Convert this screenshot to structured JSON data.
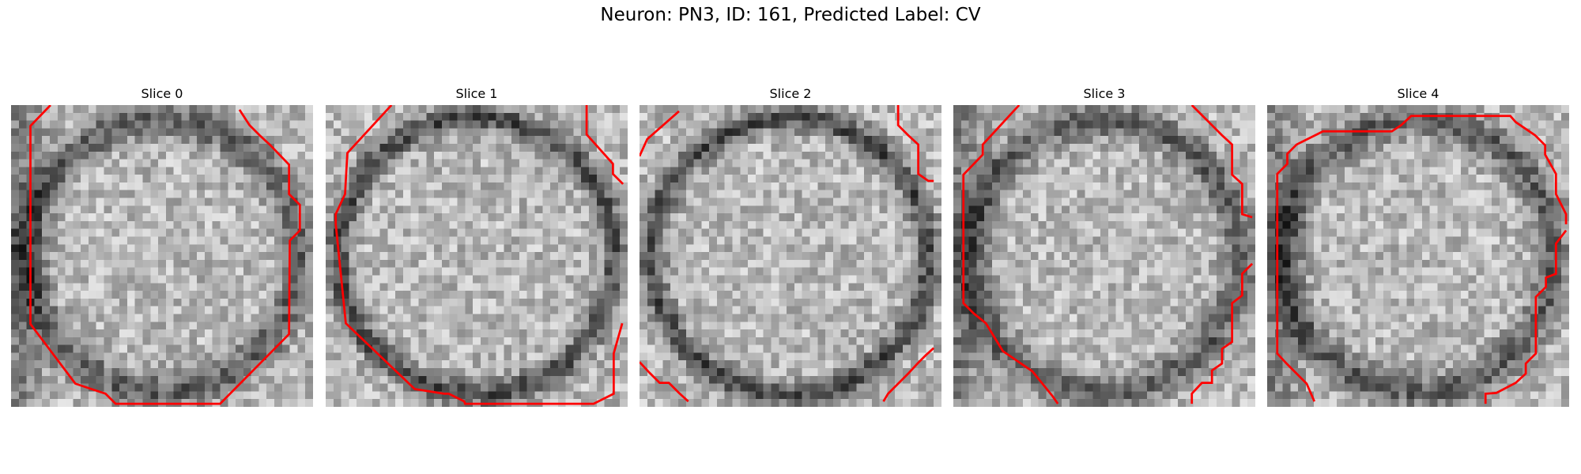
{
  "figure": {
    "title": "Neuron: PN3, ID: 161, Predicted Label: CV"
  },
  "slices": [
    {
      "title": "Slice 0",
      "seed": 11,
      "dark_side": "left",
      "contour": [
        [
          [
            5.1,
            0
          ],
          [
            2.5,
            2.7
          ],
          [
            2.5,
            28.3
          ],
          [
            8.3,
            36
          ],
          [
            12.2,
            37.3
          ],
          [
            13.5,
            38.6
          ],
          [
            27,
            38.6
          ],
          [
            35.9,
            29.6
          ],
          [
            36,
            17.5
          ],
          [
            37.3,
            16.2
          ],
          [
            37.3,
            12.9
          ],
          [
            35.9,
            11.5
          ],
          [
            35.9,
            7.7
          ],
          [
            33.4,
            5.1
          ],
          [
            32.1,
            3.9
          ],
          [
            30.8,
            2.6
          ],
          [
            29.5,
            0.6
          ]
        ]
      ]
    },
    {
      "title": "Slice 1",
      "seed": 23,
      "dark_side": "ring",
      "contour": [
        [
          [
            8.5,
            0
          ],
          [
            2.8,
            6.2
          ],
          [
            2.5,
            11.5
          ],
          [
            1.3,
            14.1
          ],
          [
            1.3,
            15.4
          ],
          [
            2.6,
            28.2
          ],
          [
            11.5,
            36.7
          ],
          [
            15.3,
            37.3
          ],
          [
            15.9,
            37.3
          ],
          [
            17.9,
            38.3
          ],
          [
            18,
            38.6
          ],
          [
            25.6,
            38.6
          ],
          [
            32,
            38.6
          ],
          [
            34.6,
            38.6
          ],
          [
            37.2,
            37.3
          ],
          [
            37.2,
            32.1
          ],
          [
            38.3,
            28.2
          ]
        ],
        [
          [
            33.7,
            0
          ],
          [
            33.7,
            3.8
          ],
          [
            37.1,
            7.6
          ],
          [
            37.1,
            8.9
          ],
          [
            38.4,
            10.2
          ]
        ]
      ]
    },
    {
      "title": "Slice 2",
      "seed": 37,
      "dark_side": "ring",
      "contour": [
        [
          [
            5.1,
            0.8
          ],
          [
            1,
            4.4
          ],
          [
            0,
            6.6
          ]
        ],
        [
          [
            33.4,
            0
          ],
          [
            33.4,
            2.6
          ],
          [
            34.7,
            3.9
          ],
          [
            36,
            5.1
          ],
          [
            36,
            8.9
          ],
          [
            37.3,
            9.8
          ],
          [
            38,
            9.8
          ]
        ],
        [
          [
            0,
            33.2
          ],
          [
            1.3,
            34.6
          ],
          [
            2.6,
            35.9
          ],
          [
            3.8,
            35.9
          ],
          [
            5.1,
            37.2
          ],
          [
            6.3,
            38.3
          ]
        ],
        [
          [
            38,
            31.4
          ],
          [
            37,
            32.3
          ],
          [
            35.9,
            33.4
          ],
          [
            34.7,
            34.7
          ],
          [
            32.1,
            37.3
          ],
          [
            31.5,
            38.3
          ]
        ]
      ]
    },
    {
      "title": "Slice 3",
      "seed": 53,
      "dark_side": "left",
      "contour": [
        [
          [
            8.5,
            0
          ],
          [
            3.8,
            5.1
          ],
          [
            3.8,
            6.4
          ],
          [
            1.3,
            9
          ],
          [
            1.3,
            25.6
          ],
          [
            2.6,
            26.9
          ],
          [
            4.2,
            28.2
          ],
          [
            6.4,
            31.8
          ],
          [
            10.2,
            34.4
          ],
          [
            12.8,
            37.6
          ],
          [
            13.5,
            38.6
          ]
        ],
        [
          [
            30.8,
            0
          ],
          [
            32.1,
            1.3
          ],
          [
            33.4,
            2.6
          ],
          [
            34.7,
            3.9
          ],
          [
            36,
            5.1
          ],
          [
            36,
            9
          ],
          [
            37.3,
            10.2
          ],
          [
            37.3,
            14.1
          ],
          [
            38.6,
            14.5
          ]
        ],
        [
          [
            38.6,
            20.5
          ],
          [
            37.3,
            21.8
          ],
          [
            37.3,
            24.6
          ],
          [
            36,
            25.6
          ],
          [
            36,
            30.6
          ],
          [
            34.7,
            31.5
          ],
          [
            34.7,
            33.4
          ],
          [
            33.4,
            34.3
          ],
          [
            33.4,
            35.9
          ],
          [
            32.1,
            35.9
          ],
          [
            30.8,
            37.3
          ],
          [
            30.8,
            38.6
          ]
        ]
      ]
    },
    {
      "title": "Slice 4",
      "seed": 71,
      "dark_side": "left",
      "contour": [
        [
          [
            6.1,
            38.3
          ],
          [
            5.1,
            36
          ],
          [
            2.5,
            33.4
          ],
          [
            1.3,
            32.1
          ],
          [
            1.3,
            8.9
          ],
          [
            2.6,
            7.6
          ],
          [
            2.6,
            6.3
          ],
          [
            3.8,
            5.1
          ],
          [
            6.4,
            3.8
          ],
          [
            7.2,
            3.4
          ],
          [
            15.4,
            3.4
          ],
          [
            16.1,
            3.4
          ],
          [
            17.3,
            2.6
          ],
          [
            18.6,
            1.4
          ],
          [
            31.4,
            1.4
          ],
          [
            32.1,
            2.2
          ],
          [
            34.6,
            3.9
          ],
          [
            35.9,
            5.2
          ],
          [
            35.9,
            6.4
          ],
          [
            37.3,
            8.9
          ],
          [
            37.3,
            11.5
          ],
          [
            38.6,
            14.1
          ],
          [
            38.6,
            15.4
          ]
        ],
        [
          [
            38.6,
            16.2
          ],
          [
            37.3,
            17.9
          ],
          [
            37.3,
            21.8
          ],
          [
            36,
            22.3
          ],
          [
            36,
            23.5
          ],
          [
            34.7,
            24.8
          ],
          [
            34.7,
            32.1
          ],
          [
            33.4,
            33.4
          ],
          [
            33.4,
            34.7
          ],
          [
            32.1,
            35.9
          ],
          [
            29.6,
            37.2
          ],
          [
            28.2,
            37.3
          ],
          [
            28.2,
            38.6
          ]
        ]
      ]
    }
  ]
}
